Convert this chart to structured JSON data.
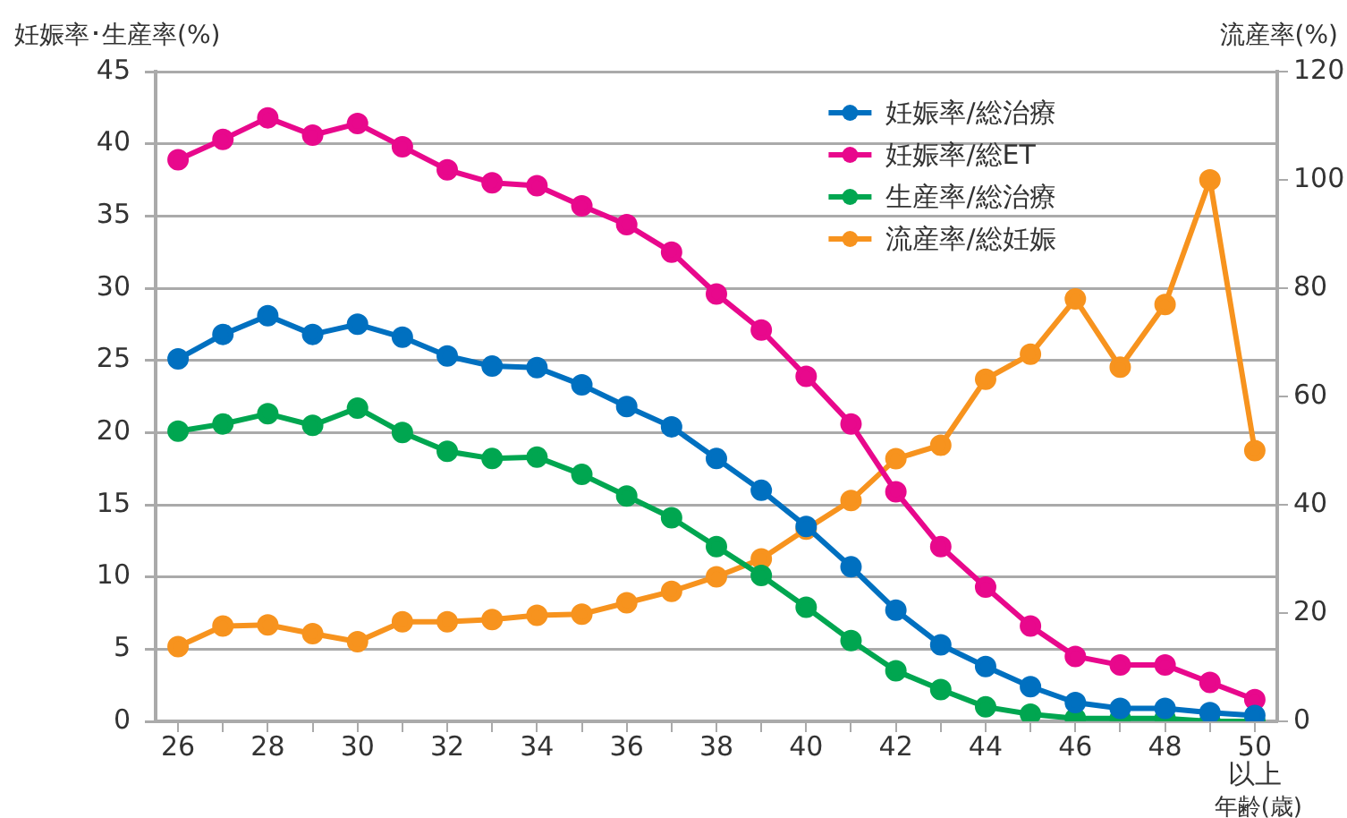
{
  "chart_data": {
    "type": "line",
    "ylabel": "妊娠率･生産率(%)",
    "y2label": "流産率(%)",
    "xlabel": "年齢(歳)",
    "x": [
      26,
      27,
      28,
      29,
      30,
      31,
      32,
      33,
      34,
      35,
      36,
      37,
      38,
      39,
      40,
      41,
      42,
      43,
      44,
      45,
      46,
      47,
      48,
      49,
      50
    ],
    "xlim": [
      25.5,
      50.5
    ],
    "xticks": [
      26,
      {
        "value": 27,
        "label": null
      },
      28,
      {
        "value": 29,
        "label": null
      },
      30,
      {
        "value": 31,
        "label": null
      },
      32,
      {
        "value": 33,
        "label": null
      },
      34,
      {
        "value": 35,
        "label": null
      },
      36,
      {
        "value": 37,
        "label": null
      },
      38,
      {
        "value": 39,
        "label": null
      },
      40,
      {
        "value": 41,
        "label": null
      },
      42,
      {
        "value": 43,
        "label": null
      },
      44,
      {
        "value": 45,
        "label": null
      },
      46,
      {
        "value": 47,
        "label": null
      },
      48,
      {
        "value": 49,
        "label": null
      },
      {
        "value": 50,
        "label": "50 以上"
      }
    ],
    "ylim": [
      0,
      45
    ],
    "yticks": [
      0,
      5,
      10,
      15,
      20,
      25,
      30,
      35,
      40,
      45
    ],
    "y2lim": [
      0,
      120
    ],
    "y2ticks": [
      0,
      20,
      40,
      60,
      80,
      100,
      120
    ],
    "grid": "y",
    "legend": "top right",
    "marker": "circle",
    "line_style": "solid",
    "series": [
      {
        "name": "妊娠率/総治療",
        "color": "#0070c0",
        "values": [
          25.1,
          26.8,
          28.1,
          26.8,
          27.5,
          26.6,
          25.3,
          24.6,
          24.5,
          23.3,
          21.8,
          20.4,
          18.2,
          16.0,
          13.5,
          10.7,
          7.7,
          5.3,
          3.8,
          2.4,
          1.3,
          0.9,
          0.9,
          0.6,
          0.4
        ]
      },
      {
        "name": "妊娠率/総ET",
        "color": "#e8088c",
        "values": [
          38.9,
          40.3,
          41.8,
          40.6,
          41.4,
          39.8,
          38.2,
          37.3,
          37.1,
          35.7,
          34.4,
          32.5,
          29.6,
          27.1,
          23.9,
          20.6,
          15.9,
          12.1,
          9.3,
          6.6,
          4.5,
          3.9,
          3.9,
          2.7,
          1.5
        ]
      },
      {
        "name": "生産率/総治療",
        "color": "#00a650",
        "values": [
          20.1,
          20.6,
          21.3,
          20.5,
          21.7,
          20.0,
          18.7,
          18.2,
          18.3,
          17.1,
          15.6,
          14.1,
          12.1,
          10.1,
          7.9,
          5.6,
          3.5,
          2.2,
          1.0,
          0.5,
          0.2,
          0.2,
          0.2,
          0.0,
          0.0
        ]
      },
      {
        "name": "流産率/総妊娠",
        "color": "#f7931e",
        "axis": "y2",
        "values": [
          13.8,
          17.6,
          17.8,
          16.2,
          14.7,
          18.4,
          18.4,
          18.8,
          19.6,
          19.8,
          21.9,
          24.0,
          26.7,
          30.0,
          35.5,
          40.8,
          48.5,
          51.0,
          63.2,
          67.8,
          78.0,
          65.4,
          77.0,
          100,
          50
        ]
      }
    ]
  }
}
